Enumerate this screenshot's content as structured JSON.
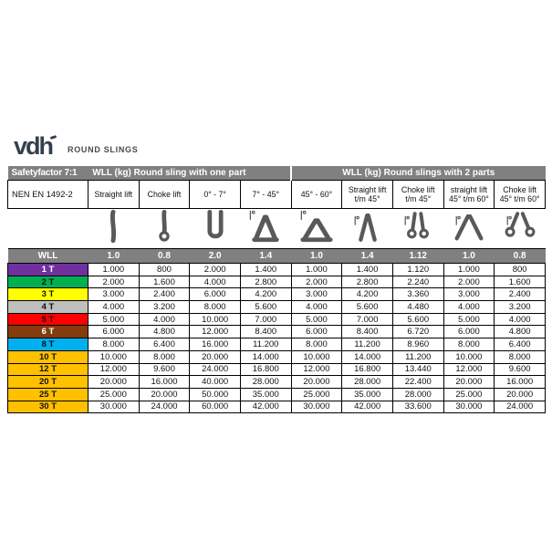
{
  "logo": {
    "brand": "vdh",
    "subtitle": "ROUND SLINGS"
  },
  "colors": {
    "header_gray": "#808080",
    "border_black": "#000000",
    "icon_gray": "#595959",
    "brand_navy": "#333F4D"
  },
  "table": {
    "top_header": {
      "safety_factor": "Safetyfactor 7:1",
      "one_part_title": "WLL (kg) Round sling with one part",
      "two_parts_title": "WLL (kg) Round slings with 2 parts"
    },
    "columns": [
      {
        "label": "NEN EN 1492-2",
        "icon": null,
        "factor": "WLL"
      },
      {
        "label": "Straight lift",
        "icon": "straight-lift-one-part-icon",
        "factor": "1.0"
      },
      {
        "label": "Choke lift",
        "icon": "choke-lift-one-part-icon",
        "factor": "0.8"
      },
      {
        "label": "0° - 7°",
        "icon": "basket-lift-0-7-icon",
        "factor": "2.0"
      },
      {
        "label": "7° - 45°",
        "icon": "basket-lift-7-45-icon",
        "factor": "1.4"
      },
      {
        "label": "45° - 60°",
        "icon": "basket-lift-45-60-icon",
        "factor": "1.0"
      },
      {
        "label": "Straight lift t/m 45°",
        "icon": "straight-lift-2-parts-45-icon",
        "factor": "1.4"
      },
      {
        "label": "Choke lift t/m 45°",
        "icon": "choke-lift-2-parts-45-icon",
        "factor": "1.12"
      },
      {
        "label": "straight lift 45° t/m 60°",
        "icon": "straight-lift-2-parts-60-icon",
        "factor": "1.0"
      },
      {
        "label": "Choke lift 45° t/m 60°",
        "icon": "choke-lift-2-parts-60-icon",
        "factor": "0.8"
      }
    ],
    "rows": [
      {
        "wll": "1 T",
        "bg": "#7030A0",
        "fg": "#FFFFFF",
        "values": [
          "1.000",
          "800",
          "2.000",
          "1.400",
          "1.000",
          "1.400",
          "1.120",
          "1.000",
          "800"
        ]
      },
      {
        "wll": "2 T",
        "bg": "#00B050",
        "fg": "#111111",
        "values": [
          "2.000",
          "1.600",
          "4.000",
          "2.800",
          "2.000",
          "2.800",
          "2.240",
          "2.000",
          "1.600"
        ]
      },
      {
        "wll": "3 T",
        "bg": "#FFFF00",
        "fg": "#111111",
        "values": [
          "3.000",
          "2.400",
          "6.000",
          "4.200",
          "3.000",
          "4.200",
          "3.360",
          "3.000",
          "2.400"
        ]
      },
      {
        "wll": "4 T",
        "bg": "#BFBFBF",
        "fg": "#111111",
        "values": [
          "4.000",
          "3.200",
          "8.000",
          "5.600",
          "4.000",
          "5.600",
          "4.480",
          "4.000",
          "3.200"
        ]
      },
      {
        "wll": "5 T",
        "bg": "#FF0000",
        "fg": "#111111",
        "values": [
          "5.000",
          "4.000",
          "10.000",
          "7.000",
          "5.000",
          "7.000",
          "5.600",
          "5.000",
          "4.000"
        ]
      },
      {
        "wll": "6 T",
        "bg": "#843C0C",
        "fg": "#FFFFFF",
        "values": [
          "6.000",
          "4.800",
          "12.000",
          "8.400",
          "6.000",
          "8.400",
          "6.720",
          "6.000",
          "4.800"
        ]
      },
      {
        "wll": "8 T",
        "bg": "#00B0F0",
        "fg": "#111111",
        "values": [
          "8.000",
          "6.400",
          "16.000",
          "11.200",
          "8.000",
          "11.200",
          "8.960",
          "8.000",
          "6.400"
        ]
      },
      {
        "wll": "10 T",
        "bg": "#FFC000",
        "fg": "#111111",
        "values": [
          "10.000",
          "8.000",
          "20.000",
          "14.000",
          "10.000",
          "14.000",
          "11.200",
          "10.000",
          "8.000"
        ]
      },
      {
        "wll": "12 T",
        "bg": "#FFC000",
        "fg": "#111111",
        "values": [
          "12.000",
          "9.600",
          "24.000",
          "16.800",
          "12.000",
          "16.800",
          "13.440",
          "12.000",
          "9.600"
        ]
      },
      {
        "wll": "20 T",
        "bg": "#FFC000",
        "fg": "#111111",
        "values": [
          "20.000",
          "16.000",
          "40.000",
          "28.000",
          "20.000",
          "28.000",
          "22.400",
          "20.000",
          "16.000"
        ]
      },
      {
        "wll": "25 T",
        "bg": "#FFC000",
        "fg": "#111111",
        "values": [
          "25.000",
          "20.000",
          "50.000",
          "35.000",
          "25.000",
          "35.000",
          "28.000",
          "25.000",
          "20.000"
        ]
      },
      {
        "wll": "30 T",
        "bg": "#FFC000",
        "fg": "#111111",
        "values": [
          "30.000",
          "24.000",
          "60.000",
          "42.000",
          "30.000",
          "42.000",
          "33.600",
          "30.000",
          "24.000"
        ]
      }
    ]
  }
}
